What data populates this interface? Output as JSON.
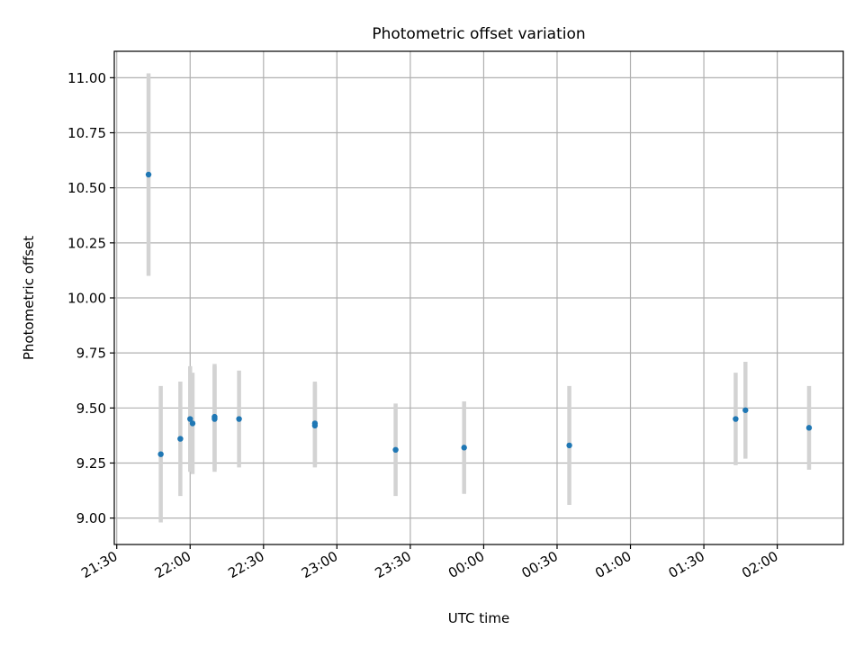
{
  "chart_data": {
    "type": "scatter",
    "title": "Photometric offset variation",
    "xlabel": "UTC time",
    "ylabel": "Photometric offset",
    "x_ticks": [
      "21:30",
      "22:00",
      "22:30",
      "23:00",
      "23:30",
      "00:00",
      "00:30",
      "01:00",
      "01:30",
      "02:00"
    ],
    "y_ticks": [
      "9.00",
      "9.25",
      "9.50",
      "9.75",
      "10.00",
      "10.25",
      "10.50",
      "10.75",
      "11.00"
    ],
    "xlim": [
      "21:29",
      "02:27"
    ],
    "ylim": [
      8.88,
      11.12
    ],
    "grid": true,
    "colors": {
      "point": "#1f77b4",
      "errorbar": "#d3d3d3",
      "grid": "#b0b0b0"
    },
    "series": [
      {
        "x": [
          "21:43",
          "21:48",
          "21:56",
          "22:00",
          "22:01",
          "22:10",
          "22:10",
          "22:20",
          "22:51",
          "22:51",
          "23:24",
          "23:52",
          "00:35",
          "01:43",
          "01:47",
          "02:13"
        ],
        "y": [
          10.56,
          9.29,
          9.36,
          9.45,
          9.43,
          9.46,
          9.45,
          9.45,
          9.42,
          9.43,
          9.31,
          9.32,
          9.33,
          9.45,
          9.49,
          9.41
        ],
        "yerr": [
          0.46,
          0.31,
          0.26,
          0.24,
          0.23,
          0.24,
          0.24,
          0.22,
          0.19,
          0.19,
          0.21,
          0.21,
          0.27,
          0.21,
          0.22,
          0.19
        ]
      }
    ]
  }
}
